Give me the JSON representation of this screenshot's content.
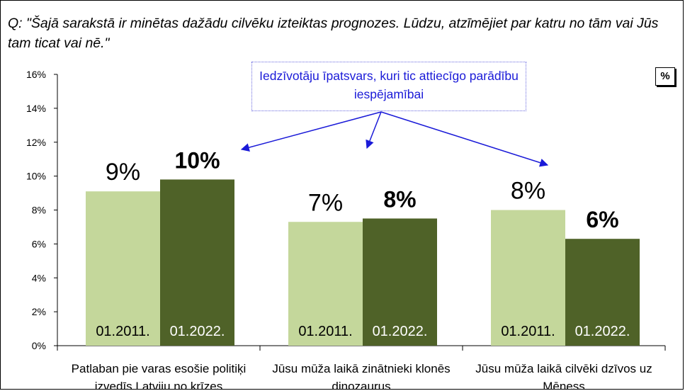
{
  "question": "Q: \"Šajā sarakstā ir minētas dažādu cilvēku izteiktas prognozes. Lūdzu, atzīmējiet par katru no tām vai Jūs tam ticat vai nē.\"",
  "annotation": "Iedzīvotāju īpatsvars, kuri tic attiecīgo parādību iespējamībai",
  "unit_badge": "%",
  "colors": {
    "series_2011": "#c4d79b",
    "series_2022": "#4f6228",
    "annotation": "#1a1ad8"
  },
  "chart_data": {
    "type": "bar",
    "categories": [
      "Patlaban pie varas esošie politiķi izvedīs Latviju no krīzes",
      "Jūsu mūža laikā zinātnieki klonēs dinozaurus",
      "Jūsu mūža laikā cilvēki dzīvos uz Mēness"
    ],
    "series": [
      {
        "name": "01.2011.",
        "values": [
          9.1,
          7.3,
          8.0
        ],
        "labels": [
          "9%",
          "7%",
          "8%"
        ]
      },
      {
        "name": "01.2022.",
        "values": [
          9.8,
          7.5,
          6.3
        ],
        "labels": [
          "10%",
          "8%",
          "6%"
        ]
      }
    ],
    "ylim": [
      0,
      16
    ],
    "yticks": [
      "0%",
      "2%",
      "4%",
      "6%",
      "8%",
      "10%",
      "12%",
      "14%",
      "16%"
    ],
    "xlabel": "",
    "ylabel": ""
  }
}
